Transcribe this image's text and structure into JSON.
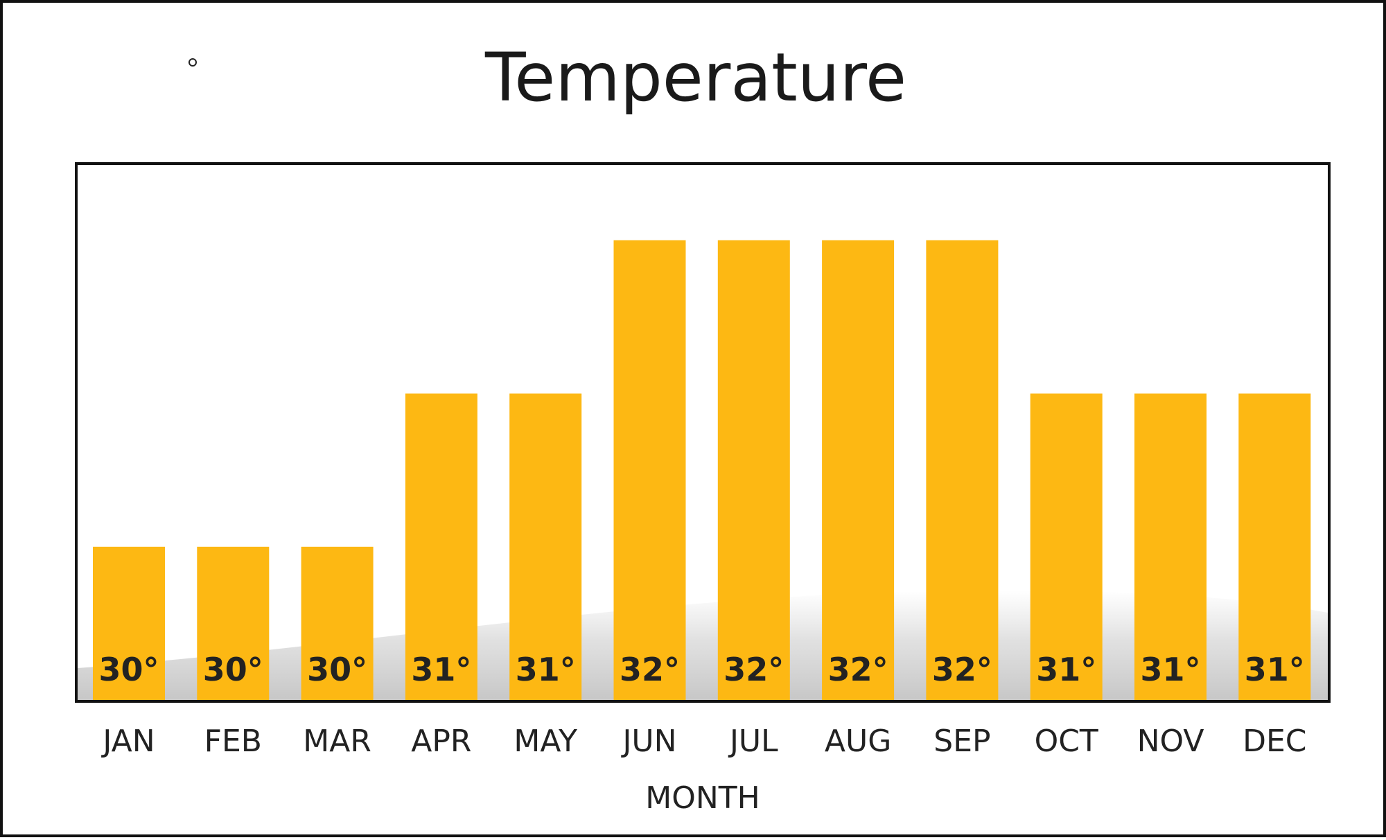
{
  "chart_data": {
    "type": "bar",
    "title": "Temperature",
    "xlabel": "MONTH",
    "ylabel": "",
    "categories": [
      "JAN",
      "FEB",
      "MAR",
      "APR",
      "MAY",
      "JUN",
      "JUL",
      "AUG",
      "SEP",
      "OCT",
      "NOV",
      "DEC"
    ],
    "values": [
      30,
      30,
      30,
      31,
      31,
      32,
      32,
      32,
      32,
      31,
      31,
      31
    ],
    "data_labels": [
      "30°",
      "30°",
      "30°",
      "31°",
      "31°",
      "32°",
      "32°",
      "32°",
      "32°",
      "31°",
      "31°",
      "31°"
    ],
    "ylim": [
      29,
      32.5
    ],
    "grid": false,
    "legend": "none",
    "colors": {
      "bar": "#FDB813",
      "frame": "#111111",
      "text": "#222222"
    }
  }
}
